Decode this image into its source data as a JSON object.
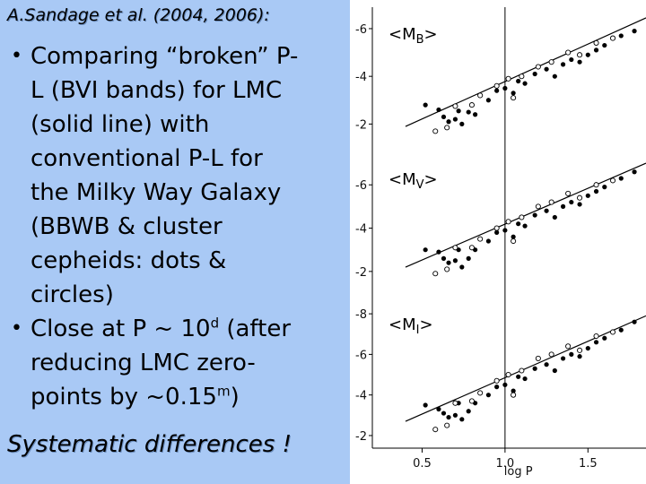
{
  "citation": "A.Sandage et al. (2004, 2006):",
  "bullets": [
    {
      "lines": [
        "Comparing “broken” P-",
        "L (BVI bands) for LMC",
        "(solid line) with",
        "conventional P-L for",
        "the Milky Way Galaxy",
        "(BBWB & cluster",
        "cepheids: dots &",
        "circles)"
      ]
    },
    {
      "line1_pre": "Close at P ~ 10",
      "line1_sup": "d",
      "line1_post": " (after",
      "line2": "reducing LMC zero-",
      "line3_pre": "points by ~0.15",
      "line3_sup": "m",
      "line3_post": ")"
    }
  ],
  "conclusion": "Systematic differences !",
  "chart_data": {
    "type": "scatter",
    "xlabel": "log P",
    "xlim": [
      0.2,
      1.85
    ],
    "x_ticks": [
      "0.5",
      "1.0",
      "1.5"
    ],
    "x_tick_values": [
      0.5,
      1.0,
      1.5
    ],
    "vertical_line_at": 1.0,
    "panels": [
      {
        "label_base": "<M",
        "label_sub": "B",
        "label_end": ">",
        "ylim": [
          -1.0,
          -6.9
        ],
        "y_ticks": [
          "-6",
          "-4",
          "-2"
        ],
        "y_tick_values": [
          -6,
          -4,
          -2
        ],
        "line": {
          "x": [
            0.4,
            1.85
          ],
          "y": [
            -1.9,
            -6.45
          ]
        },
        "dots": [
          [
            0.52,
            -2.8
          ],
          [
            0.6,
            -2.6
          ],
          [
            0.63,
            -2.3
          ],
          [
            0.66,
            -2.1
          ],
          [
            0.7,
            -2.2
          ],
          [
            0.72,
            -2.55
          ],
          [
            0.74,
            -2.0
          ],
          [
            0.78,
            -2.5
          ],
          [
            0.82,
            -2.4
          ],
          [
            0.9,
            -3.0
          ],
          [
            0.95,
            -3.4
          ],
          [
            1.0,
            -3.5
          ],
          [
            1.05,
            -3.3
          ],
          [
            1.08,
            -3.8
          ],
          [
            1.12,
            -3.7
          ],
          [
            1.18,
            -4.1
          ],
          [
            1.25,
            -4.3
          ],
          [
            1.3,
            -4.0
          ],
          [
            1.35,
            -4.5
          ],
          [
            1.4,
            -4.7
          ],
          [
            1.45,
            -4.6
          ],
          [
            1.5,
            -4.9
          ],
          [
            1.55,
            -5.1
          ],
          [
            1.6,
            -5.3
          ],
          [
            1.7,
            -5.7
          ],
          [
            1.78,
            -5.9
          ]
        ],
        "circles": [
          [
            0.58,
            -1.7
          ],
          [
            0.65,
            -1.85
          ],
          [
            0.7,
            -2.75
          ],
          [
            0.8,
            -2.8
          ],
          [
            0.85,
            -3.2
          ],
          [
            0.95,
            -3.6
          ],
          [
            1.02,
            -3.9
          ],
          [
            1.05,
            -3.1
          ],
          [
            1.1,
            -4.0
          ],
          [
            1.2,
            -4.4
          ],
          [
            1.28,
            -4.6
          ],
          [
            1.38,
            -5.0
          ],
          [
            1.45,
            -4.9
          ],
          [
            1.55,
            -5.4
          ],
          [
            1.65,
            -5.6
          ]
        ]
      },
      {
        "label_base": "<M",
        "label_sub": "V",
        "label_end": ">",
        "ylim": [
          -1.0,
          -7.5
        ],
        "y_ticks": [
          "-6",
          "-4",
          "-2"
        ],
        "y_tick_values": [
          -6,
          -4,
          -2
        ],
        "line": {
          "x": [
            0.4,
            1.85
          ],
          "y": [
            -2.2,
            -7.0
          ]
        },
        "dots": [
          [
            0.52,
            -3.0
          ],
          [
            0.6,
            -2.9
          ],
          [
            0.63,
            -2.6
          ],
          [
            0.66,
            -2.4
          ],
          [
            0.7,
            -2.5
          ],
          [
            0.72,
            -3.0
          ],
          [
            0.74,
            -2.2
          ],
          [
            0.78,
            -2.6
          ],
          [
            0.82,
            -3.0
          ],
          [
            0.9,
            -3.4
          ],
          [
            0.95,
            -3.8
          ],
          [
            1.0,
            -3.9
          ],
          [
            1.05,
            -3.6
          ],
          [
            1.08,
            -4.2
          ],
          [
            1.12,
            -4.1
          ],
          [
            1.18,
            -4.6
          ],
          [
            1.25,
            -4.8
          ],
          [
            1.3,
            -4.5
          ],
          [
            1.35,
            -5.0
          ],
          [
            1.4,
            -5.2
          ],
          [
            1.45,
            -5.1
          ],
          [
            1.5,
            -5.5
          ],
          [
            1.55,
            -5.7
          ],
          [
            1.6,
            -5.9
          ],
          [
            1.7,
            -6.3
          ],
          [
            1.78,
            -6.6
          ]
        ],
        "circles": [
          [
            0.58,
            -1.9
          ],
          [
            0.65,
            -2.1
          ],
          [
            0.7,
            -3.1
          ],
          [
            0.8,
            -3.1
          ],
          [
            0.85,
            -3.5
          ],
          [
            0.95,
            -4.0
          ],
          [
            1.02,
            -4.3
          ],
          [
            1.05,
            -3.4
          ],
          [
            1.1,
            -4.5
          ],
          [
            1.2,
            -5.0
          ],
          [
            1.28,
            -5.2
          ],
          [
            1.38,
            -5.6
          ],
          [
            1.45,
            -5.4
          ],
          [
            1.55,
            -6.0
          ],
          [
            1.65,
            -6.2
          ]
        ]
      },
      {
        "label_base": "<M",
        "label_sub": "I",
        "label_end": ">",
        "ylim": [
          -1.6,
          -8.8
        ],
        "y_ticks": [
          "-8",
          "-6",
          "-4",
          "-2"
        ],
        "y_tick_values": [
          -8,
          -6,
          -4,
          -2
        ],
        "line": {
          "x": [
            0.4,
            1.85
          ],
          "y": [
            -2.7,
            -7.9
          ]
        },
        "dots": [
          [
            0.52,
            -3.5
          ],
          [
            0.6,
            -3.3
          ],
          [
            0.63,
            -3.1
          ],
          [
            0.66,
            -2.9
          ],
          [
            0.7,
            -3.0
          ],
          [
            0.72,
            -3.6
          ],
          [
            0.74,
            -2.8
          ],
          [
            0.78,
            -3.2
          ],
          [
            0.82,
            -3.6
          ],
          [
            0.9,
            -4.0
          ],
          [
            0.95,
            -4.4
          ],
          [
            1.0,
            -4.5
          ],
          [
            1.05,
            -4.2
          ],
          [
            1.08,
            -4.9
          ],
          [
            1.12,
            -4.8
          ],
          [
            1.18,
            -5.3
          ],
          [
            1.25,
            -5.5
          ],
          [
            1.3,
            -5.2
          ],
          [
            1.35,
            -5.8
          ],
          [
            1.4,
            -6.0
          ],
          [
            1.45,
            -5.9
          ],
          [
            1.5,
            -6.3
          ],
          [
            1.55,
            -6.6
          ],
          [
            1.6,
            -6.8
          ],
          [
            1.7,
            -7.2
          ],
          [
            1.78,
            -7.6
          ]
        ],
        "circles": [
          [
            0.58,
            -2.3
          ],
          [
            0.65,
            -2.5
          ],
          [
            0.7,
            -3.6
          ],
          [
            0.8,
            -3.7
          ],
          [
            0.85,
            -4.1
          ],
          [
            0.95,
            -4.7
          ],
          [
            1.02,
            -5.0
          ],
          [
            1.05,
            -4.0
          ],
          [
            1.1,
            -5.2
          ],
          [
            1.2,
            -5.8
          ],
          [
            1.28,
            -6.0
          ],
          [
            1.38,
            -6.4
          ],
          [
            1.45,
            -6.2
          ],
          [
            1.55,
            -6.9
          ],
          [
            1.65,
            -7.1
          ]
        ]
      }
    ]
  }
}
